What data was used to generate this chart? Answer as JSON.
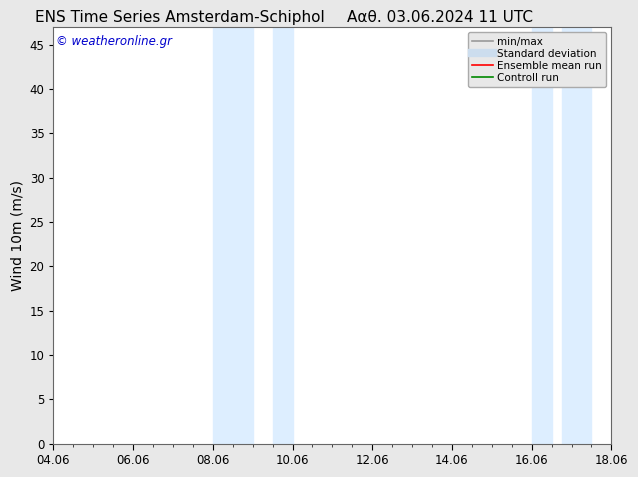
{
  "title": "ENS Time Series Amsterdam-Schiphol",
  "title2": "Ααθ. 03.06.2024 11 UTC",
  "ylabel": "Wind 10m (m/s)",
  "watermark": "© weatheronline.gr",
  "watermark_color": "#0000cc",
  "background_color": "#e8e8e8",
  "plot_bg_color": "#ffffff",
  "shaded_band_color": "#ddeeff",
  "xlim_start": 0,
  "xlim_end": 14,
  "ylim_min": 0,
  "ylim_max": 47,
  "yticks": [
    0,
    5,
    10,
    15,
    20,
    25,
    30,
    35,
    40,
    45
  ],
  "xtick_labels": [
    "04.06",
    "06.06",
    "08.06",
    "10.06",
    "12.06",
    "14.06",
    "16.06",
    "18.06"
  ],
  "xtick_positions": [
    0,
    2,
    4,
    6,
    8,
    10,
    12,
    14
  ],
  "shaded_regions": [
    {
      "xstart": 4.0,
      "xend": 5.0
    },
    {
      "xstart": 5.5,
      "xend": 6.0
    },
    {
      "xstart": 12.0,
      "xend": 12.5
    },
    {
      "xstart": 12.75,
      "xend": 13.5
    }
  ],
  "legend_entries": [
    {
      "label": "min/max",
      "color": "#999999",
      "linewidth": 1.2,
      "linestyle": "-"
    },
    {
      "label": "Standard deviation",
      "color": "#ccddee",
      "linewidth": 6,
      "linestyle": "-"
    },
    {
      "label": "Ensemble mean run",
      "color": "#ff0000",
      "linewidth": 1.2,
      "linestyle": "-"
    },
    {
      "label": "Controll run",
      "color": "#008800",
      "linewidth": 1.2,
      "linestyle": "-"
    }
  ],
  "title_fontsize": 11,
  "axis_fontsize": 10,
  "tick_fontsize": 8.5,
  "watermark_fontsize": 8.5,
  "legend_fontsize": 7.5
}
